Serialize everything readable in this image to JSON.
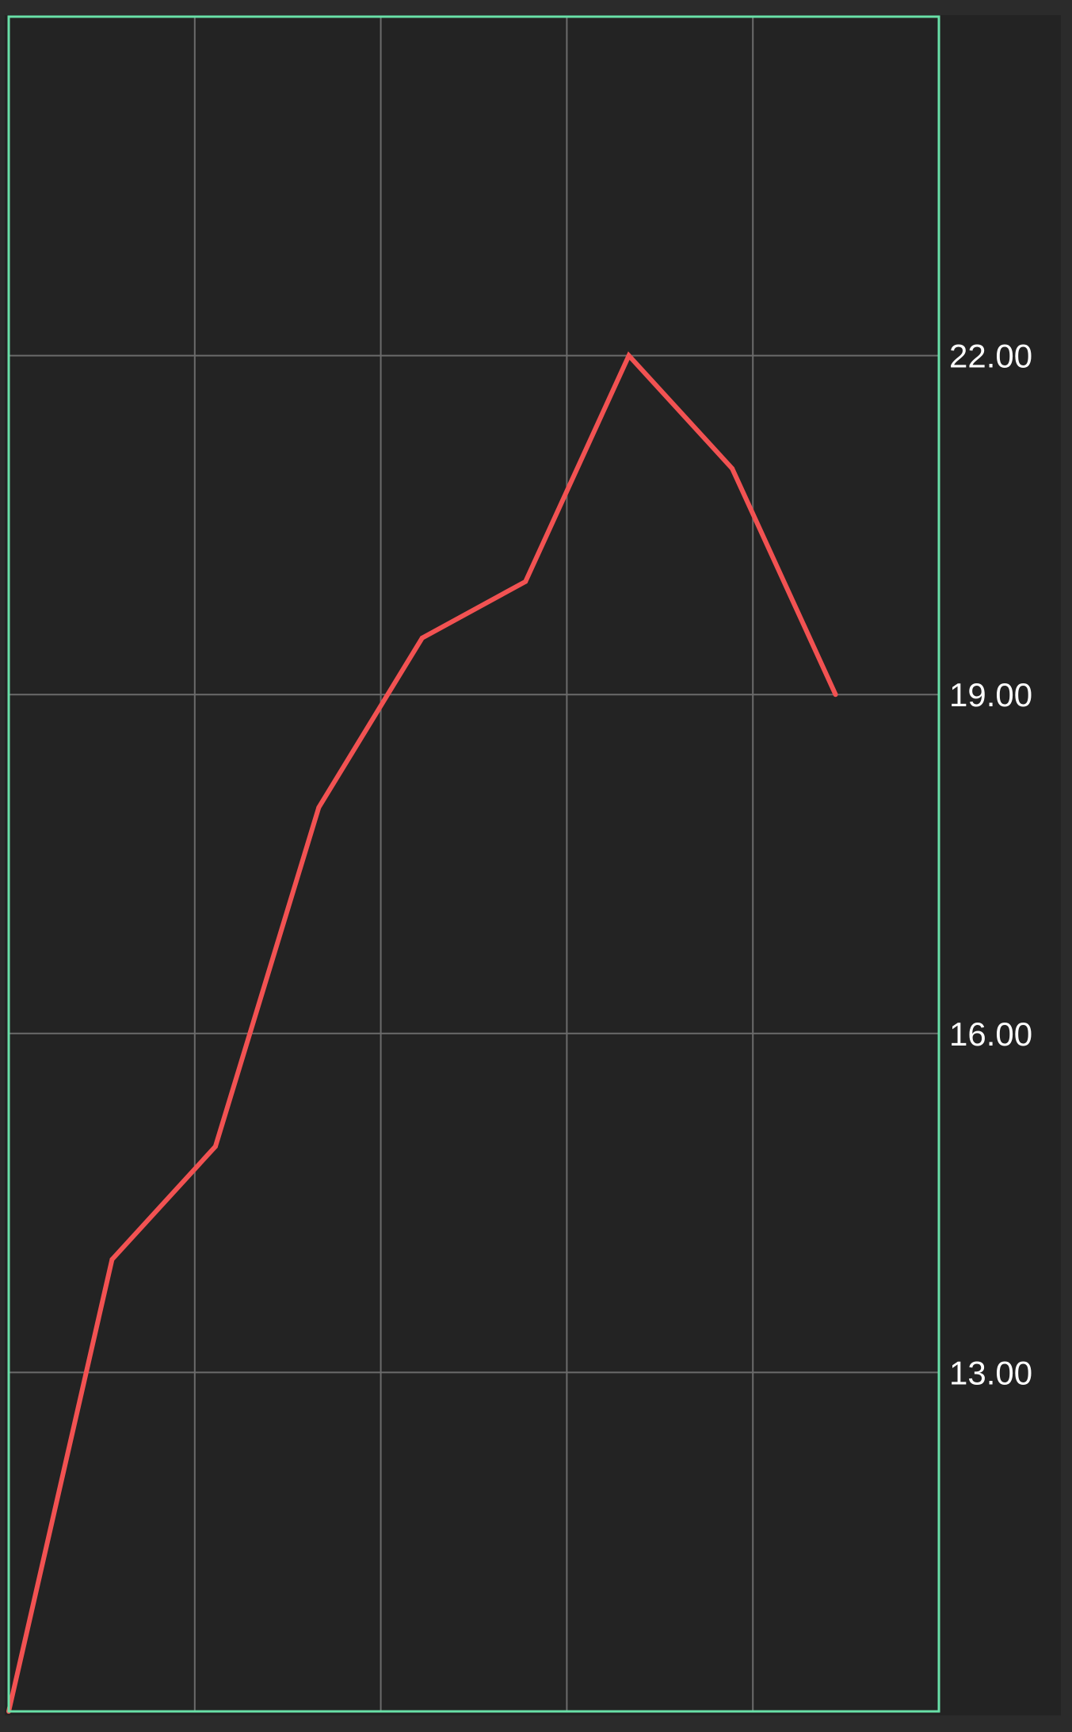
{
  "chart_data": {
    "type": "line",
    "x": [
      0,
      1,
      2,
      3,
      4,
      5,
      6,
      7,
      8,
      9
    ],
    "series": [
      {
        "values": [
          10.0,
          14.0,
          15.0,
          18.0,
          19.5,
          20.0,
          22.0,
          21.0,
          19.0,
          null
        ],
        "color": "#f25252"
      }
    ],
    "ylim": [
      10.0,
      25.0
    ],
    "yticks": [
      13.0,
      16.0,
      19.0,
      22.0
    ],
    "ytick_labels": [
      "13.00",
      "16.00",
      "19.00",
      "22.00"
    ],
    "x_gridlines": 4,
    "grid": true,
    "y_axis_position": "right",
    "title": "",
    "xlabel": "",
    "ylabel": ""
  },
  "colors": {
    "background": "#2b2b2b",
    "plot_background": "#232323",
    "plot_border": "#69e0a8",
    "grid": "#6b6b6b",
    "line": "#f25252",
    "tick_text": "#ffffff"
  }
}
